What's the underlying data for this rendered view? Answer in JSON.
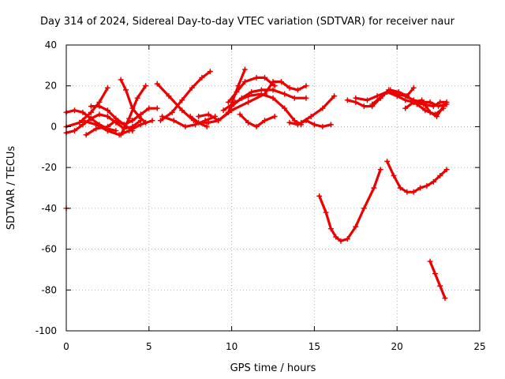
{
  "chart_data": {
    "type": "line",
    "title": "Day 314 of 2024, Sidereal Day-to-day VTEC variation (SDTVAR) for receiver naur",
    "xlabel": "GPS time / hours",
    "ylabel": "SDTVAR / TECUs",
    "xlim": [
      0,
      25
    ],
    "ylim": [
      -100,
      40
    ],
    "xticks": [
      0,
      5,
      10,
      15,
      20,
      25
    ],
    "yticks": [
      -100,
      -80,
      -60,
      -40,
      -20,
      0,
      20,
      40
    ],
    "grid": true,
    "line_color": "#ee0000",
    "series": [
      {
        "name": "s1",
        "x": [
          0,
          0.5,
          1,
          1.5,
          2,
          2.5,
          3,
          3.5,
          4,
          4.5
        ],
        "y": [
          -3,
          -2,
          1,
          4,
          6,
          5,
          2,
          -1,
          0,
          3
        ]
      },
      {
        "name": "s2",
        "x": [
          0,
          0.5,
          1,
          1.5,
          2,
          2.5,
          3
        ],
        "y": [
          7,
          8,
          7,
          4,
          1,
          -1,
          -2
        ]
      },
      {
        "name": "s3",
        "x": [
          0,
          0.8,
          1.5,
          2,
          2.5
        ],
        "y": [
          0,
          2,
          7,
          12,
          19
        ]
      },
      {
        "name": "s4",
        "x": [
          1.2,
          1.8,
          2.5,
          3,
          3.5,
          4
        ],
        "y": [
          -4,
          -1,
          0,
          3,
          1,
          -2
        ]
      },
      {
        "name": "s5",
        "x": [
          1,
          1.8,
          2.5,
          3.2,
          3.8,
          4.5,
          5.2
        ],
        "y": [
          3,
          1,
          -2,
          -4,
          -2,
          1,
          3
        ]
      },
      {
        "name": "s6",
        "x": [
          1.5,
          2,
          2.5,
          3,
          3.5,
          4,
          4.5,
          5,
          5.5
        ],
        "y": [
          10,
          10,
          8,
          4,
          1,
          3,
          6,
          9,
          9
        ]
      },
      {
        "name": "s7",
        "x": [
          3.3,
          3.6,
          4,
          4.4,
          4.8
        ],
        "y": [
          23,
          18,
          9,
          5,
          2
        ]
      },
      {
        "name": "s8",
        "x": [
          3.3,
          3.8,
          4.3,
          4.8
        ],
        "y": [
          -4,
          4,
          14,
          20
        ]
      },
      {
        "name": "s9",
        "x": [
          5.5,
          6.2,
          7,
          7.7,
          8.5
        ],
        "y": [
          21,
          15,
          8,
          3,
          0
        ]
      },
      {
        "name": "s10",
        "x": [
          5.7,
          6.4,
          7,
          7.6,
          8.2,
          8.7
        ],
        "y": [
          3,
          7,
          13,
          19,
          24,
          27
        ]
      },
      {
        "name": "s11",
        "x": [
          5.8,
          6.5,
          7.2,
          7.8,
          8.4,
          9
        ],
        "y": [
          5,
          3,
          0,
          1,
          3,
          5
        ]
      },
      {
        "name": "s12",
        "x": [
          7.5,
          8,
          8.6,
          9.2,
          9.8,
          10.4,
          10.8
        ],
        "y": [
          5,
          2,
          2,
          3,
          7,
          20,
          28
        ]
      },
      {
        "name": "s13",
        "x": [
          8,
          8.6,
          9.2,
          10,
          11,
          12,
          12.5,
          13,
          13.5,
          14,
          14.5
        ],
        "y": [
          5,
          6,
          3,
          8,
          12,
          16,
          22,
          22,
          19,
          18,
          20
        ]
      },
      {
        "name": "s14",
        "x": [
          9.5,
          10.2,
          11,
          11.8,
          12.5,
          13.2,
          13.8,
          14.2
        ],
        "y": [
          8,
          12,
          15,
          16,
          14,
          9,
          3,
          1
        ]
      },
      {
        "name": "s15",
        "x": [
          9.8,
          10.3,
          10.8,
          11.5,
          12,
          12.6
        ],
        "y": [
          12,
          17,
          22,
          24,
          24,
          20
        ]
      },
      {
        "name": "s16",
        "x": [
          10,
          10.6,
          11.2,
          11.8,
          12.5,
          13.2,
          13.8,
          14.5
        ],
        "y": [
          10,
          14,
          17,
          18,
          18,
          16,
          14,
          14
        ]
      },
      {
        "name": "s17",
        "x": [
          10.5,
          11,
          11.5,
          12,
          12.6
        ],
        "y": [
          6,
          2,
          0,
          3,
          5
        ]
      },
      {
        "name": "s18",
        "x": [
          13.5,
          14,
          14.5,
          15,
          15.5,
          16
        ],
        "y": [
          2,
          1,
          3,
          1,
          0,
          1
        ]
      },
      {
        "name": "s19",
        "x": [
          14.2,
          14.8,
          15.5,
          16.2
        ],
        "y": [
          2,
          5,
          9,
          15
        ]
      },
      {
        "name": "s20",
        "x": [
          15.3,
          15.7,
          16,
          16.3,
          16.6,
          17,
          17.5,
          18,
          18.6,
          19
        ],
        "y": [
          -34,
          -42,
          -50,
          -54,
          -56,
          -55,
          -49,
          -40,
          -30,
          -21
        ]
      },
      {
        "name": "s21",
        "x": [
          17,
          17.5,
          18,
          18.5,
          19,
          19.5,
          20,
          20.5,
          21,
          21.5,
          22,
          22.5,
          23
        ],
        "y": [
          13,
          12,
          10,
          10,
          14,
          18,
          16,
          15,
          13,
          12,
          12,
          10,
          11
        ]
      },
      {
        "name": "s22",
        "x": [
          17.5,
          18.2,
          18.8,
          19.4,
          20,
          20.5,
          21,
          21.6,
          22.2,
          22.6,
          23
        ],
        "y": [
          14,
          13,
          15,
          17,
          15,
          13,
          12,
          11,
          10,
          12,
          12
        ]
      },
      {
        "name": "s23",
        "x": [
          18.5,
          19.1,
          19.6,
          20.1,
          20.6,
          21
        ],
        "y": [
          11,
          15,
          18,
          17,
          15,
          19
        ]
      },
      {
        "name": "s24",
        "x": [
          20.5,
          21,
          21.5,
          22,
          22.4,
          22.8
        ],
        "y": [
          9,
          12,
          13,
          7,
          5,
          10
        ]
      },
      {
        "name": "s25",
        "x": [
          21.2,
          21.7,
          22.3,
          22.8
        ],
        "y": [
          11,
          8,
          6,
          9
        ]
      },
      {
        "name": "s26",
        "x": [
          19.4,
          19.8,
          20.2,
          20.6,
          21,
          21.4,
          21.8,
          22.2,
          22.6,
          23
        ],
        "y": [
          -17,
          -24,
          -30,
          -32,
          -32,
          -30,
          -29,
          -27,
          -24,
          -21
        ]
      },
      {
        "name": "s27",
        "x": [
          22,
          22.3,
          22.6,
          22.9
        ],
        "y": [
          -66,
          -72,
          -78,
          -84
        ]
      },
      {
        "name": "s28",
        "x": [
          0
        ],
        "y": [
          -40
        ]
      }
    ]
  }
}
